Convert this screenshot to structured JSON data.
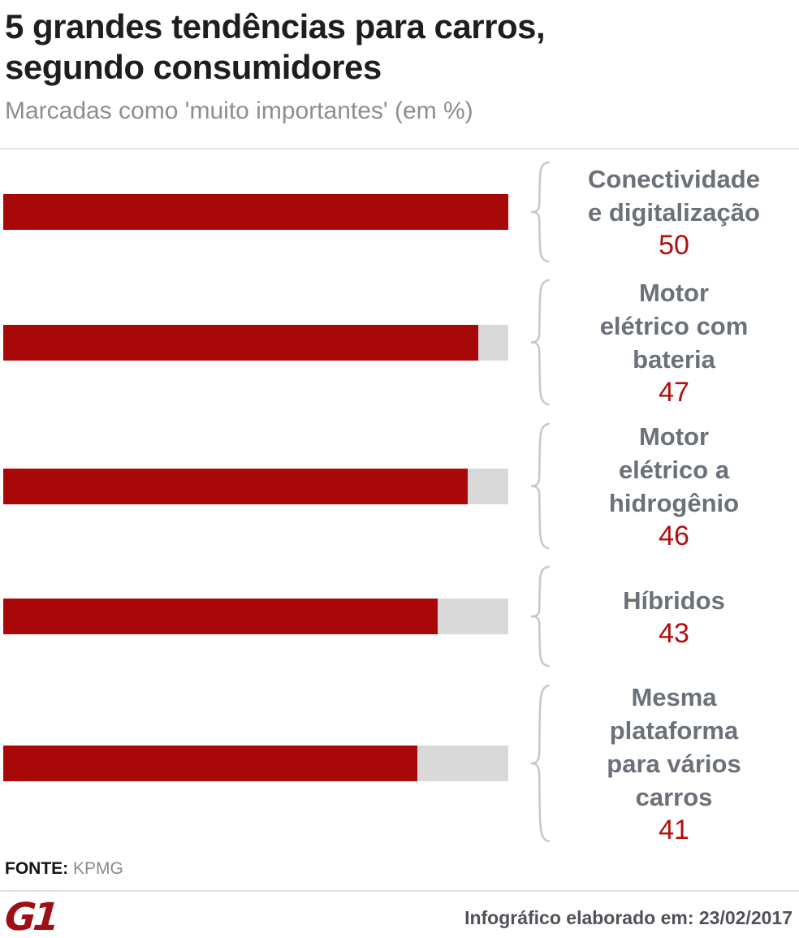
{
  "header": {
    "title_lines": [
      "5 grandes tendências para carros,",
      "segundo consumidores"
    ],
    "subtitle": "Marcadas como 'muito importantes' (em %)"
  },
  "chart_data": {
    "type": "bar",
    "orientation": "horizontal",
    "title": "5 grandes tendências para carros, segundo consumidores",
    "subtitle": "Marcadas como 'muito importantes' (em %)",
    "unit": "%",
    "xlim": [
      0,
      50
    ],
    "grid": false,
    "legend": false,
    "categories": [
      "Conectividade e digitalização",
      "Motor elétrico com bateria",
      "Motor elétrico a hidrogênio",
      "Híbridos",
      "Mesma plataforma para vários carros"
    ],
    "values": [
      50,
      47,
      46,
      43,
      41
    ],
    "bars": [
      {
        "label_lines": [
          "Conectividade",
          "e digitalização"
        ],
        "value": 50
      },
      {
        "label_lines": [
          "Motor",
          "elétrico com",
          "bateria"
        ],
        "value": 47
      },
      {
        "label_lines": [
          "Motor",
          "elétrico a",
          "hidrogênio"
        ],
        "value": 46
      },
      {
        "label_lines": [
          "Híbridos"
        ],
        "value": 43
      },
      {
        "label_lines": [
          "Mesma",
          "plataforma",
          "para vários",
          "carros"
        ],
        "value": 41
      }
    ],
    "colors": {
      "bar_fill": "#a80808",
      "bar_track": "#d9d9d9",
      "value_text": "#b30f0f",
      "label_text": "#6b7178",
      "brace": "#c9c9c9"
    }
  },
  "icons": {
    "brace": "curly-brace-left"
  },
  "footer": {
    "source_label": "FONTE:",
    "source_value": "KPMG",
    "brand": "G1",
    "credit": "Infográfico elaborado em: 23/02/2017"
  }
}
